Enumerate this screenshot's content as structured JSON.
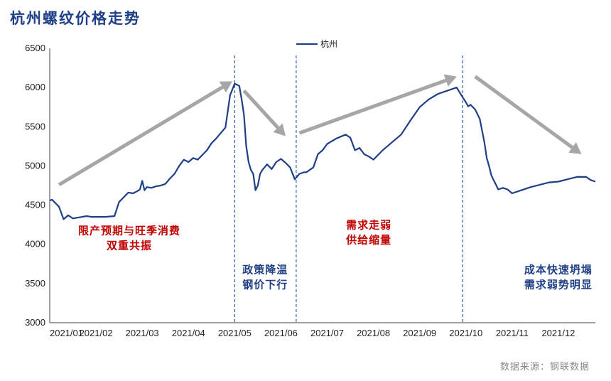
{
  "title": "杭州螺纹价格走势",
  "source": "数据来源：钢联数据",
  "colors": {
    "line": "#1f3f86",
    "title": "#1f3f86",
    "arrow": "#a6a6a6",
    "red_text": "#c00000",
    "divider": "#2e5aa8"
  },
  "chart_data": {
    "type": "line",
    "x_tick_labels": [
      "2021/01",
      "2021/02",
      "2021/03",
      "2021/04",
      "2021/05",
      "2021/06",
      "2021/07",
      "2021/08",
      "2021/09",
      "2021/10",
      "2021/11",
      "2021/12"
    ],
    "ylim": [
      3000,
      6500
    ],
    "y_ticks": [
      3000,
      3500,
      4000,
      4500,
      5000,
      5500,
      6000,
      6500
    ],
    "grid": false,
    "legend_position": "top-center",
    "series": [
      {
        "name": "杭州",
        "x": [
          0,
          0.05,
          0.1,
          0.15,
          0.2,
          0.3,
          0.4,
          0.5,
          0.6,
          0.7,
          0.8,
          0.9,
          1.0,
          1.2,
          1.4,
          1.5,
          1.6,
          1.7,
          1.8,
          1.9,
          1.95,
          2.0,
          2.05,
          2.1,
          2.2,
          2.3,
          2.4,
          2.5,
          2.6,
          2.7,
          2.8,
          2.9,
          3.0,
          3.1,
          3.2,
          3.3,
          3.4,
          3.5,
          3.6,
          3.7,
          3.8,
          3.9,
          4.0,
          4.1,
          4.15,
          4.2,
          4.25,
          4.3,
          4.35,
          4.4,
          4.45,
          4.5,
          4.55,
          4.6,
          4.7,
          4.8,
          4.9,
          5.0,
          5.1,
          5.2,
          5.3,
          5.4,
          5.5,
          5.55,
          5.6,
          5.65,
          5.7,
          5.8,
          5.9,
          6.0,
          6.2,
          6.4,
          6.5,
          6.6,
          6.7,
          6.8,
          6.9,
          7.0,
          7.2,
          7.4,
          7.6,
          7.8,
          8.0,
          8.2,
          8.4,
          8.6,
          8.8,
          9.0,
          9.05,
          9.1,
          9.2,
          9.3,
          9.4,
          9.45,
          9.5,
          9.55,
          9.6,
          9.7,
          9.8,
          9.9,
          10.0,
          10.2,
          10.4,
          10.6,
          10.8,
          11.0,
          11.2,
          11.4,
          11.6,
          11.7,
          11.8
        ],
        "values": [
          4560,
          4570,
          4540,
          4510,
          4480,
          4320,
          4370,
          4330,
          4340,
          4350,
          4360,
          4350,
          4350,
          4350,
          4360,
          4540,
          4600,
          4660,
          4650,
          4680,
          4700,
          4810,
          4690,
          4730,
          4720,
          4740,
          4750,
          4770,
          4840,
          4900,
          5000,
          5080,
          5050,
          5100,
          5080,
          5140,
          5200,
          5290,
          5350,
          5420,
          5490,
          5900,
          6050,
          6020,
          5850,
          5650,
          5250,
          5050,
          4950,
          4900,
          4690,
          4750,
          4900,
          4950,
          5020,
          4960,
          5050,
          5090,
          5040,
          4980,
          4830,
          4900,
          4920,
          4920,
          4940,
          4960,
          4980,
          5150,
          5200,
          5280,
          5350,
          5400,
          5360,
          5200,
          5230,
          5150,
          5120,
          5080,
          5200,
          5300,
          5400,
          5580,
          5750,
          5850,
          5920,
          5960,
          6000,
          5810,
          5760,
          5780,
          5720,
          5600,
          5300,
          5100,
          5000,
          4880,
          4820,
          4700,
          4720,
          4700,
          4650,
          4690,
          4730,
          4760,
          4790,
          4800,
          4830,
          4860,
          4860,
          4820,
          4800
        ]
      }
    ],
    "dividers_month_index": [
      4.0,
      5.33,
      8.93
    ],
    "trend_arrows": [
      {
        "from_x": 0.2,
        "from_y": 4760,
        "to_x": 3.95,
        "to_y": 6080
      },
      {
        "from_x": 4.2,
        "from_y": 5960,
        "to_x": 5.1,
        "to_y": 5380
      },
      {
        "from_x": 5.4,
        "from_y": 5420,
        "to_x": 8.8,
        "to_y": 6140
      },
      {
        "from_x": 9.2,
        "from_y": 6140,
        "to_x": 11.5,
        "to_y": 5150
      }
    ],
    "annotations": [
      {
        "lines": [
          "限产预期与旺季消费",
          "双重共振"
        ],
        "style": "red",
        "x": 1.72,
        "y": 4130
      },
      {
        "lines": [
          "政策降温",
          "钢价下行"
        ],
        "style": "blue",
        "x": 4.66,
        "y": 3630
      },
      {
        "lines": [
          "需求走弱",
          "供给缩量"
        ],
        "style": "red",
        "x": 6.9,
        "y": 4200
      },
      {
        "lines": [
          "成本快速坍塌",
          "需求弱势明显"
        ],
        "style": "blue",
        "x": 11.0,
        "y": 3630
      }
    ]
  }
}
